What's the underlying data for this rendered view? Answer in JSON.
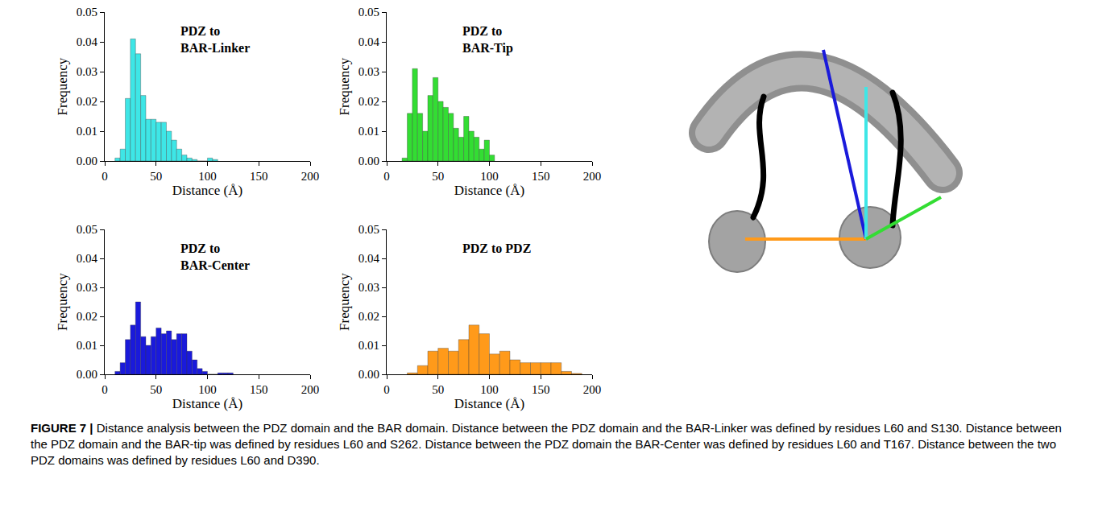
{
  "chart_data": [
    {
      "type": "histogram",
      "title": "PDZ to BAR-Linker",
      "x_label": "Distance (Å)",
      "y_label": "Frequency",
      "color": "#3ee6e6",
      "grid": false,
      "bins": [
        10,
        15,
        20,
        25,
        30,
        35,
        40,
        45,
        50,
        55,
        60,
        65,
        70,
        75,
        80,
        85,
        90,
        95,
        100,
        105,
        110
      ],
      "values": [
        0.001,
        0.004,
        0.021,
        0.041,
        0.036,
        0.022,
        0.014,
        0.014,
        0.013,
        0.013,
        0.01,
        0.007,
        0.004,
        0.002,
        0.001,
        0.0005,
        0,
        0,
        0.001,
        0.0005
      ],
      "xlim": [
        0,
        200
      ],
      "xticks": [
        0,
        50,
        100,
        150,
        200
      ],
      "ylim": [
        0,
        0.05
      ],
      "yticks": [
        {
          "value": 0,
          "label": "0.00"
        },
        {
          "value": 0.01,
          "label": "0.01"
        },
        {
          "value": 0.02,
          "label": "0.02"
        },
        {
          "value": 0.03,
          "label": "0.03"
        },
        {
          "value": 0.04,
          "label": "0.04"
        },
        {
          "value": 0.05,
          "label": "0.05"
        }
      ]
    },
    {
      "type": "histogram",
      "title": "PDZ to BAR-Tip",
      "x_label": "Distance (Å)",
      "y_label": "Frequency",
      "color": "#33dd33",
      "grid": false,
      "bins": [
        15,
        20,
        25,
        30,
        35,
        40,
        45,
        50,
        55,
        60,
        65,
        70,
        75,
        80,
        85,
        90,
        95,
        100,
        105
      ],
      "values": [
        0.001,
        0.016,
        0.031,
        0.016,
        0.01,
        0.022,
        0.028,
        0.02,
        0.018,
        0.016,
        0.011,
        0.008,
        0.015,
        0.01,
        0.008,
        0.004,
        0.007,
        0.002
      ],
      "xlim": [
        0,
        200
      ],
      "xticks": [
        0,
        50,
        100,
        150,
        200
      ],
      "ylim": [
        0,
        0.05
      ],
      "yticks": [
        {
          "value": 0,
          "label": "0.00"
        },
        {
          "value": 0.01,
          "label": "0.01"
        },
        {
          "value": 0.02,
          "label": "0.02"
        },
        {
          "value": 0.03,
          "label": "0.03"
        },
        {
          "value": 0.04,
          "label": "0.04"
        },
        {
          "value": 0.05,
          "label": "0.05"
        }
      ]
    },
    {
      "type": "histogram",
      "title": "PDZ to BAR-Center",
      "x_label": "Distance (Å)",
      "y_label": "Frequency",
      "color": "#1a1adb",
      "grid": false,
      "bins": [
        10,
        15,
        20,
        25,
        30,
        35,
        40,
        45,
        50,
        55,
        60,
        65,
        70,
        75,
        80,
        85,
        90,
        95,
        100,
        105,
        110,
        115,
        120,
        125
      ],
      "values": [
        0.001,
        0.004,
        0.012,
        0.017,
        0.025,
        0.013,
        0.01,
        0.013,
        0.016,
        0.014,
        0.015,
        0.012,
        0.014,
        0.014,
        0.008,
        0.005,
        0.002,
        0.001,
        0,
        0,
        0.0005,
        0.0005,
        0.0005
      ],
      "xlim": [
        0,
        200
      ],
      "xticks": [
        0,
        50,
        100,
        150,
        200
      ],
      "ylim": [
        0,
        0.05
      ],
      "yticks": [
        {
          "value": 0,
          "label": "0.00"
        },
        {
          "value": 0.01,
          "label": "0.01"
        },
        {
          "value": 0.02,
          "label": "0.02"
        },
        {
          "value": 0.03,
          "label": "0.03"
        },
        {
          "value": 0.04,
          "label": "0.04"
        },
        {
          "value": 0.05,
          "label": "0.05"
        }
      ]
    },
    {
      "type": "histogram",
      "title": "PDZ to PDZ",
      "x_label": "Distance (Å)",
      "y_label": "Frequency",
      "color": "#ff9a1a",
      "grid": false,
      "bins": [
        20,
        30,
        40,
        50,
        60,
        70,
        80,
        90,
        100,
        110,
        120,
        130,
        140,
        150,
        160,
        170,
        180,
        190
      ],
      "values": [
        0.0005,
        0.003,
        0.008,
        0.009,
        0.008,
        0.012,
        0.017,
        0.014,
        0.007,
        0.008,
        0.005,
        0.004,
        0.004,
        0.004,
        0.004,
        0.001,
        0.0003
      ],
      "xlim": [
        0,
        200
      ],
      "xticks": [
        0,
        50,
        100,
        150,
        200
      ],
      "ylim": [
        0,
        0.05
      ],
      "yticks": [
        {
          "value": 0,
          "label": "0.00"
        },
        {
          "value": 0.01,
          "label": "0.01"
        },
        {
          "value": 0.02,
          "label": "0.02"
        },
        {
          "value": 0.03,
          "label": "0.03"
        },
        {
          "value": 0.04,
          "label": "0.04"
        },
        {
          "value": 0.05,
          "label": "0.05"
        }
      ]
    }
  ],
  "caption": {
    "label": "FIGURE 7 |",
    "text": "Distance analysis between the PDZ domain and the BAR domain. Distance between the PDZ domain and the BAR-Linker was defined by residues L60 and S130. Distance between the PDZ domain and the BAR-tip was defined by residues L60 and S262. Distance between the PDZ domain the BAR-Center was defined by residues L60 and T167. Distance between the two PDZ domains was defined by residues L60 and D390."
  }
}
